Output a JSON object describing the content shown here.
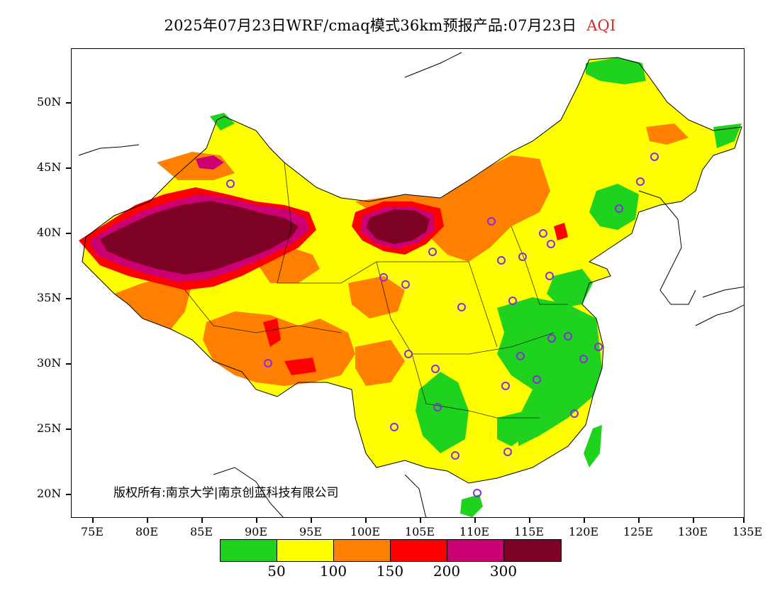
{
  "title": {
    "main": "2025年07月23日WRF/cmaq模式36km预报产品:07月23日",
    "variable": "AQI",
    "variable_color": "#d12a2a"
  },
  "latitude_labels": [
    "50N",
    "45N",
    "40N",
    "35N",
    "30N",
    "25N",
    "20N"
  ],
  "longitude_labels": [
    "75E",
    "80E",
    "85E",
    "90E",
    "95E",
    "100E",
    "105E",
    "110E",
    "115E",
    "120E",
    "125E",
    "130E",
    "135E"
  ],
  "copyright": "版权所有:南京大学|南京创蓝科技有限公司",
  "legend": {
    "colors": [
      "#1ed21e",
      "#ffff00",
      "#ff8000",
      "#ff0000",
      "#cc0073",
      "#7d0025"
    ],
    "labels": [
      "50",
      "100",
      "150",
      "200",
      "300"
    ]
  },
  "monitoring_sites_marker_color": "#8a2be2"
}
